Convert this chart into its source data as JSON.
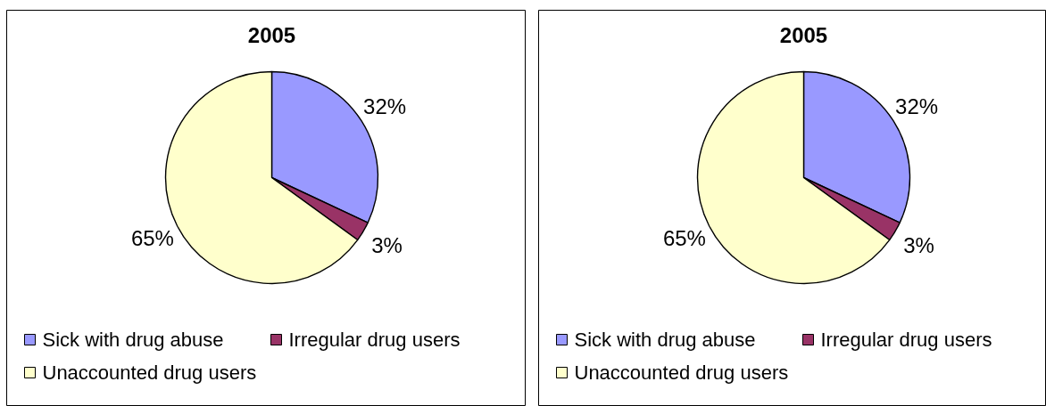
{
  "chart_data": [
    {
      "type": "pie",
      "title": "2005",
      "categories": [
        "Sick with drug abuse",
        "Irregular drug users",
        "Unaccounted drug users"
      ],
      "values": [
        32,
        3,
        65
      ],
      "colors": [
        "#9999ff",
        "#993366",
        "#ffffcc"
      ],
      "value_labels": [
        "32%",
        "3%",
        "65%"
      ],
      "legend": "bottom"
    },
    {
      "type": "pie",
      "title": "2005",
      "categories": [
        "Sick with drug abuse",
        "Irregular drug users",
        "Unaccounted drug users"
      ],
      "values": [
        32,
        3,
        65
      ],
      "colors": [
        "#9999ff",
        "#993366",
        "#ffffcc"
      ],
      "value_labels": [
        "32%",
        "3%",
        "65%"
      ],
      "legend": "bottom"
    }
  ]
}
